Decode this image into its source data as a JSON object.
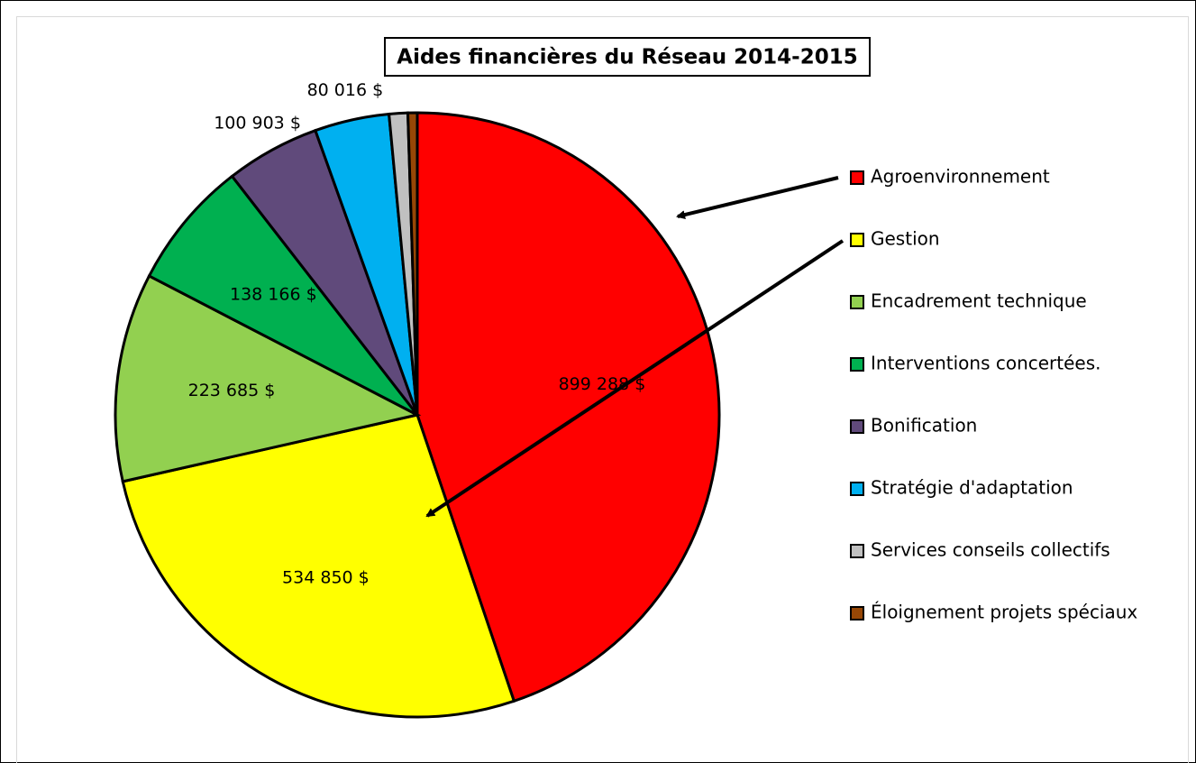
{
  "chart_data": {
    "type": "pie",
    "title": "Aides financières du Réseau 2014-2015",
    "categories": [
      "Agroenvironnement",
      "Gestion",
      "Encadrement technique",
      "Interventions concertées.",
      "Bonification",
      "Stratégie d'adaptation",
      "Services conseils collectifs",
      "Éloignement projets spéciaux"
    ],
    "values": [
      899288,
      534850,
      223685,
      138166,
      100903,
      80016,
      20000,
      10000
    ],
    "value_labels": [
      "899 288 $",
      "534 850 $",
      "223 685 $",
      "138 166 $",
      "100 903 $",
      "80 016 $",
      null,
      null
    ],
    "colors": [
      "#ff0000",
      "#ffff00",
      "#92d050",
      "#00b050",
      "#604a7b",
      "#00b0f0",
      "#c0c0c0",
      "#974706"
    ],
    "legend": "right"
  }
}
